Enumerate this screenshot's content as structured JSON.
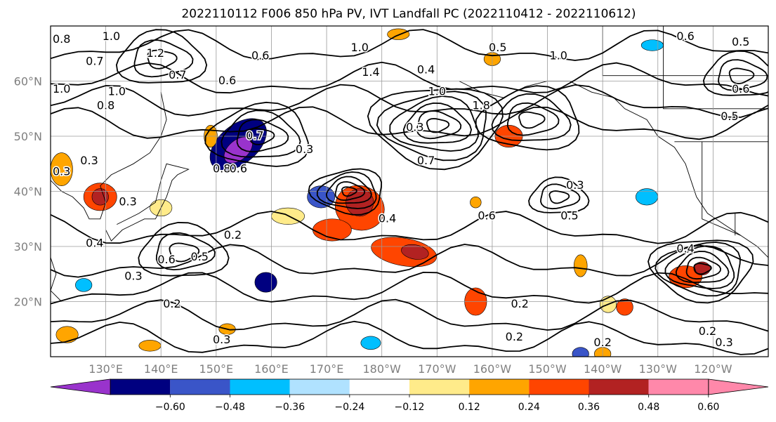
{
  "title": "2022110112 F006 850 hPa PV, IVT Landfall PC (2022110412 - 2022110612)",
  "map": {
    "lon_range": [
      120,
      250
    ],
    "lat_range": [
      10,
      70
    ],
    "lat_ticks": [
      {
        "value": 20,
        "label": "20°N"
      },
      {
        "value": 30,
        "label": "30°N"
      },
      {
        "value": 40,
        "label": "40°N"
      },
      {
        "value": 50,
        "label": "50°N"
      },
      {
        "value": 60,
        "label": "60°N"
      }
    ],
    "lon_ticks": [
      {
        "value": 130,
        "label": "130°E"
      },
      {
        "value": 140,
        "label": "140°E"
      },
      {
        "value": 150,
        "label": "150°E"
      },
      {
        "value": 160,
        "label": "160°E"
      },
      {
        "value": 170,
        "label": "170°E"
      },
      {
        "value": 180,
        "label": "180°W"
      },
      {
        "value": 190,
        "label": "170°W"
      },
      {
        "value": 200,
        "label": "160°W"
      },
      {
        "value": 210,
        "label": "150°W"
      },
      {
        "value": 220,
        "label": "140°W"
      },
      {
        "value": 230,
        "label": "130°W"
      },
      {
        "value": 240,
        "label": "120°W"
      }
    ],
    "grid": true,
    "contour_labels": [
      {
        "text": "0.8",
        "lon": 122,
        "lat": 67.5
      },
      {
        "text": "1.0",
        "lon": 131,
        "lat": 68
      },
      {
        "text": "0.7",
        "lon": 128,
        "lat": 63.5
      },
      {
        "text": "1.2",
        "lon": 139,
        "lat": 65
      },
      {
        "text": "0.6",
        "lon": 158,
        "lat": 64.5
      },
      {
        "text": "0.7",
        "lon": 143,
        "lat": 61
      },
      {
        "text": "0.6",
        "lon": 152,
        "lat": 60
      },
      {
        "text": "1.0",
        "lon": 122,
        "lat": 58.5
      },
      {
        "text": "1.0",
        "lon": 132,
        "lat": 58
      },
      {
        "text": "0.8",
        "lon": 130,
        "lat": 55.5
      },
      {
        "text": "0.7",
        "lon": 157,
        "lat": 50
      },
      {
        "text": "0.3",
        "lon": 166,
        "lat": 47.5
      },
      {
        "text": "0.3",
        "lon": 127,
        "lat": 45.5
      },
      {
        "text": "0.8",
        "lon": 151,
        "lat": 44
      },
      {
        "text": "0.6",
        "lon": 154,
        "lat": 44
      },
      {
        "text": "0.3",
        "lon": 122,
        "lat": 43.5
      },
      {
        "text": "0.3",
        "lon": 134,
        "lat": 38
      },
      {
        "text": "1.0",
        "lon": 176,
        "lat": 66
      },
      {
        "text": "1.4",
        "lon": 178,
        "lat": 61.5
      },
      {
        "text": "0.4",
        "lon": 188,
        "lat": 62
      },
      {
        "text": "0.3",
        "lon": 186,
        "lat": 51.5
      },
      {
        "text": "1.0",
        "lon": 190,
        "lat": 58
      },
      {
        "text": "1.8",
        "lon": 198,
        "lat": 55.5
      },
      {
        "text": "1.0",
        "lon": 212,
        "lat": 64.5
      },
      {
        "text": "0.5",
        "lon": 201,
        "lat": 66
      },
      {
        "text": "0.6",
        "lon": 235,
        "lat": 68
      },
      {
        "text": "0.5",
        "lon": 245,
        "lat": 67
      },
      {
        "text": "0.6",
        "lon": 245,
        "lat": 58.5
      },
      {
        "text": "0.5",
        "lon": 243,
        "lat": 53.5
      },
      {
        "text": "0.7",
        "lon": 188,
        "lat": 45.5
      },
      {
        "text": "0.3",
        "lon": 215,
        "lat": 41
      },
      {
        "text": "0.5",
        "lon": 214,
        "lat": 35.5
      },
      {
        "text": "0.6",
        "lon": 199,
        "lat": 35.5
      },
      {
        "text": "0.4",
        "lon": 181,
        "lat": 35
      },
      {
        "text": "0.2",
        "lon": 153,
        "lat": 32
      },
      {
        "text": "0.4",
        "lon": 128,
        "lat": 30.5
      },
      {
        "text": "0.6",
        "lon": 141,
        "lat": 27.5
      },
      {
        "text": "0.5",
        "lon": 147,
        "lat": 28
      },
      {
        "text": "0.3",
        "lon": 135,
        "lat": 24.5
      },
      {
        "text": "0.2",
        "lon": 142,
        "lat": 19.5
      },
      {
        "text": "0.3",
        "lon": 151,
        "lat": 13
      },
      {
        "text": "0.2",
        "lon": 205,
        "lat": 19.5
      },
      {
        "text": "0.2",
        "lon": 204,
        "lat": 13.5
      },
      {
        "text": "0.2",
        "lon": 220,
        "lat": 12.5
      },
      {
        "text": "0.2",
        "lon": 239,
        "lat": 14.5
      },
      {
        "text": "0.3",
        "lon": 242,
        "lat": 12.5
      },
      {
        "text": "0.4",
        "lon": 235,
        "lat": 29.5
      }
    ],
    "contour_centers": [
      {
        "lon": 174,
        "lat": 40,
        "levels": 5,
        "r": 5
      },
      {
        "lon": 190,
        "lat": 52,
        "levels": 6,
        "r": 9
      },
      {
        "lon": 207,
        "lat": 53,
        "levels": 4,
        "r": 7
      },
      {
        "lon": 158,
        "lat": 50,
        "levels": 4,
        "r": 7
      },
      {
        "lon": 144,
        "lat": 29,
        "levels": 3,
        "r": 6
      },
      {
        "lon": 238,
        "lat": 26,
        "levels": 6,
        "r": 7
      },
      {
        "lon": 212,
        "lat": 39,
        "levels": 3,
        "r": 4
      },
      {
        "lon": 140,
        "lat": 64,
        "levels": 3,
        "r": 6
      },
      {
        "lon": 245,
        "lat": 61,
        "levels": 3,
        "r": 5
      }
    ],
    "shaded_anomalies": [
      {
        "lon": 154,
        "lat": 48.5,
        "rx": 6,
        "ry": 3.5,
        "rot": -40,
        "value": -0.5
      },
      {
        "lon": 154,
        "lat": 47.5,
        "rx": 3,
        "ry": 1.8,
        "rot": -40,
        "value": -0.62
      },
      {
        "lon": 169,
        "lat": 39,
        "rx": 2.5,
        "ry": 2,
        "rot": 0,
        "value": -0.4
      },
      {
        "lon": 176,
        "lat": 37,
        "rx": 4.5,
        "ry": 4,
        "rot": 20,
        "value": 0.45
      },
      {
        "lon": 176,
        "lat": 38,
        "rx": 2.5,
        "ry": 2.5,
        "rot": 20,
        "value": 0.55
      },
      {
        "lon": 171,
        "lat": 33,
        "rx": 3.5,
        "ry": 2,
        "rot": 0,
        "value": 0.42
      },
      {
        "lon": 184,
        "lat": 29,
        "rx": 6,
        "ry": 2.5,
        "rot": 10,
        "value": 0.4
      },
      {
        "lon": 186,
        "lat": 29,
        "rx": 2.5,
        "ry": 1.3,
        "rot": 10,
        "value": 0.55
      },
      {
        "lon": 129,
        "lat": 39,
        "rx": 3,
        "ry": 2.5,
        "rot": 0,
        "value": 0.45
      },
      {
        "lon": 129,
        "lat": 39,
        "rx": 1.5,
        "ry": 1.5,
        "rot": 0,
        "value": 0.55
      },
      {
        "lon": 122,
        "lat": 44,
        "rx": 2,
        "ry": 3,
        "rot": 0,
        "value": 0.3
      },
      {
        "lon": 203,
        "lat": 50,
        "rx": 2.5,
        "ry": 2,
        "rot": 0,
        "value": 0.38
      },
      {
        "lon": 235,
        "lat": 24.5,
        "rx": 3,
        "ry": 2,
        "rot": 0,
        "value": 0.4
      },
      {
        "lon": 238,
        "lat": 26,
        "rx": 1.5,
        "ry": 1.2,
        "rot": 0,
        "value": 0.5
      },
      {
        "lon": 224,
        "lat": 19,
        "rx": 1.5,
        "ry": 1.5,
        "rot": 0,
        "value": 0.4
      },
      {
        "lon": 197,
        "lat": 20,
        "rx": 2,
        "ry": 2.5,
        "rot": 0,
        "value": 0.4
      },
      {
        "lon": 216,
        "lat": 26.5,
        "rx": 1.2,
        "ry": 2,
        "rot": 0,
        "value": 0.28
      },
      {
        "lon": 152,
        "lat": 15,
        "rx": 1.5,
        "ry": 1,
        "rot": 0,
        "value": 0.28
      },
      {
        "lon": 138,
        "lat": 12,
        "rx": 2,
        "ry": 1,
        "rot": 0,
        "value": 0.28
      },
      {
        "lon": 123,
        "lat": 14,
        "rx": 2,
        "ry": 1.5,
        "rot": 0,
        "value": 0.3
      },
      {
        "lon": 149,
        "lat": 50,
        "rx": 1.2,
        "ry": 2,
        "rot": 0,
        "value": 0.3
      },
      {
        "lon": 197,
        "lat": 38,
        "rx": 1,
        "ry": 1,
        "rot": 0,
        "value": 0.28
      },
      {
        "lon": 183,
        "lat": 68.5,
        "rx": 2,
        "ry": 1,
        "rot": 0,
        "value": 0.28
      },
      {
        "lon": 200,
        "lat": 64,
        "rx": 1.5,
        "ry": 1.2,
        "rot": 0,
        "value": 0.28
      },
      {
        "lon": 221,
        "lat": 19.5,
        "rx": 1.5,
        "ry": 1.5,
        "rot": 0,
        "value": 0.2
      },
      {
        "lon": 220,
        "lat": 10.5,
        "rx": 1.5,
        "ry": 1.2,
        "rot": 0,
        "value": 0.28
      },
      {
        "lon": 159,
        "lat": 23.5,
        "rx": 2,
        "ry": 1.8,
        "rot": 0,
        "value": -0.5
      },
      {
        "lon": 126,
        "lat": 23,
        "rx": 1.5,
        "ry": 1.2,
        "rot": 0,
        "value": -0.35
      },
      {
        "lon": 228,
        "lat": 39,
        "rx": 2,
        "ry": 1.5,
        "rot": 0,
        "value": -0.3
      },
      {
        "lon": 229,
        "lat": 66.5,
        "rx": 2,
        "ry": 1,
        "rot": 0,
        "value": -0.3
      },
      {
        "lon": 216,
        "lat": 10.5,
        "rx": 1.5,
        "ry": 1.2,
        "rot": 0,
        "value": -0.45
      },
      {
        "lon": 178,
        "lat": 12.5,
        "rx": 1.8,
        "ry": 1.2,
        "rot": 0,
        "value": -0.3
      },
      {
        "lon": 163,
        "lat": 35.5,
        "rx": 3,
        "ry": 1.5,
        "rot": 0,
        "value": 0.14
      },
      {
        "lon": 140,
        "lat": 37,
        "rx": 2,
        "ry": 1.5,
        "rot": 0,
        "value": 0.14
      }
    ]
  },
  "colorbar": {
    "bins": [
      {
        "color": "#9933cc",
        "label": ""
      },
      {
        "color": "#000080",
        "label": "-0.60"
      },
      {
        "color": "#3a55c8",
        "label": "-0.48"
      },
      {
        "color": "#00bfff",
        "label": "-0.36"
      },
      {
        "color": "#b0e2ff",
        "label": "-0.24"
      },
      {
        "color": "#ffffff",
        "label": "-0.12"
      },
      {
        "color": "#ffeb8a",
        "label": "0.12"
      },
      {
        "color": "#ffa500",
        "label": "0.24"
      },
      {
        "color": "#ff4500",
        "label": "0.36"
      },
      {
        "color": "#b22222",
        "label": "0.48"
      },
      {
        "color": "#ff88aa",
        "label": "0.60"
      },
      {
        "color": "#ff88aa",
        "label": ""
      }
    ],
    "tick_labels": [
      "-0.60",
      "-0.48",
      "-0.36",
      "-0.24",
      "-0.12",
      "0.12",
      "0.24",
      "0.36",
      "0.48",
      "0.60"
    ],
    "levels": [
      -0.6,
      -0.48,
      -0.36,
      -0.24,
      -0.12,
      0.12,
      0.24,
      0.36,
      0.48,
      0.6
    ]
  }
}
